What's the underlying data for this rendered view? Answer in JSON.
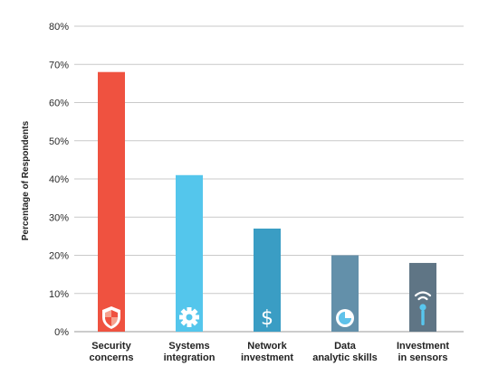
{
  "chart_data": {
    "type": "bar",
    "title": "",
    "xlabel": "",
    "ylabel": "Percentage of Respondents",
    "ylim": [
      0,
      80
    ],
    "y_ticks": [
      "0%",
      "10%",
      "20%",
      "30%",
      "40%",
      "50%",
      "60%",
      "70%",
      "80%"
    ],
    "grid": true,
    "legend": "none",
    "categories": [
      [
        "Security",
        "concerns"
      ],
      [
        "Systems",
        "integration"
      ],
      [
        "Network",
        "investment"
      ],
      [
        "Data",
        "analytic skills"
      ],
      [
        "Investment",
        "in sensors"
      ]
    ],
    "values": [
      68,
      41,
      27,
      20,
      18
    ],
    "colors": [
      "#ef5240",
      "#54c6ec",
      "#3a9dc4",
      "#6390aa",
      "#5f7585"
    ],
    "icons": [
      "shield-icon",
      "gear-icon",
      "dollar-icon",
      "pie-chart-icon",
      "sensor-icon"
    ]
  }
}
